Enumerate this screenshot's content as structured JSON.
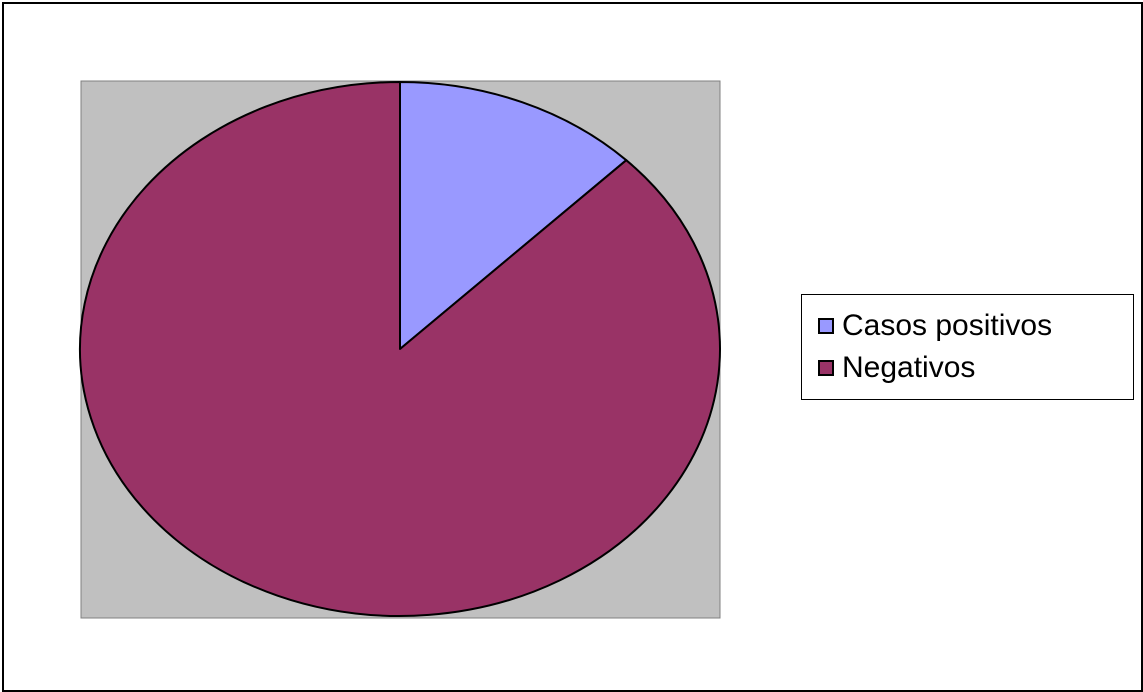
{
  "colors": {
    "plot_area": "#c0c0c0",
    "outline": "#000000"
  },
  "chart_data": {
    "type": "pie",
    "title": "",
    "legend_position": "right",
    "slices": [
      {
        "label": "Casos positivos",
        "value": 12.5,
        "color": "#9999ff"
      },
      {
        "label": "Negativos",
        "value": 87.5,
        "color": "#993366"
      }
    ]
  }
}
